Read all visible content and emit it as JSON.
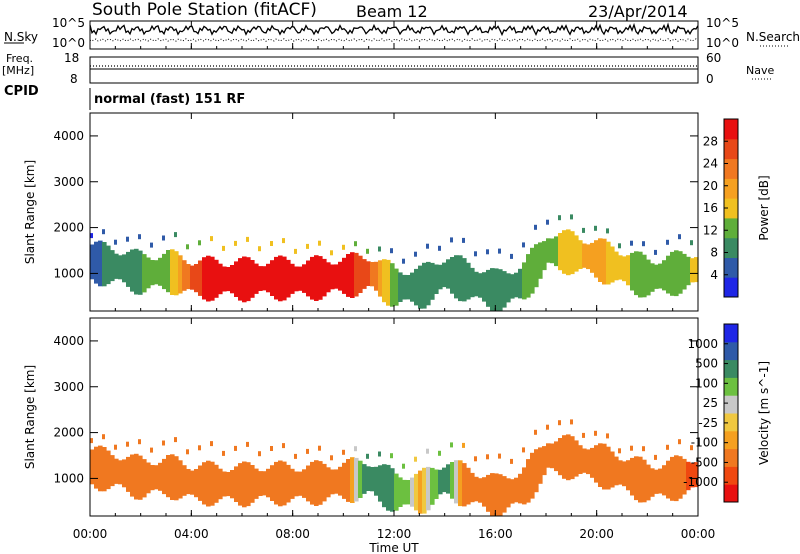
{
  "header": {
    "station": "South Pole Station (fitACF)",
    "beam": "Beam 12",
    "date": "23/Apr/2014"
  },
  "panel_labels": {
    "nsky": "N.Sky",
    "nsearch": "N.Search",
    "freq_line1": "Freq.",
    "freq_line2": "[MHz]",
    "nave": "Nave",
    "cpid": "CPID",
    "cpid_value": "normal (fast) 151 RF"
  },
  "noise_axis": {
    "left_ticks": [
      "10^5",
      "10^0"
    ],
    "right_ticks": [
      "10^5",
      "10^0"
    ]
  },
  "freq_axis": {
    "left_ticks": [
      "18",
      "8"
    ],
    "right_ticks": [
      "60",
      "0"
    ]
  },
  "colors": {
    "power_scale": [
      "#1f26e6",
      "#2f5aa8",
      "#3a8a62",
      "#5fae3a",
      "#f0c020",
      "#f5a020",
      "#f07820",
      "#e84818",
      "#e81010"
    ],
    "velocity_scale": [
      "#e81010",
      "#f04810",
      "#f07820",
      "#f5a020",
      "#f0c840",
      "#c8c8c8",
      "#6cc040",
      "#3a8a62",
      "#2f5aa8",
      "#1f26e6"
    ]
  },
  "chart_data": [
    {
      "type": "heatmap",
      "xlabel": "Time UT",
      "ylabel": "Slant Range [km]",
      "x_ticks": [
        "00:00",
        "04:00",
        "08:00",
        "12:00",
        "16:00",
        "20:00",
        "00:00"
      ],
      "y_ticks": [
        "1000",
        "2000",
        "3000",
        "4000"
      ],
      "ylim": [
        180,
        4500
      ],
      "colorbar_label": "Power [dB]",
      "colorbar_ticks": [
        "4",
        "8",
        "12",
        "16",
        "20",
        "24",
        "28"
      ],
      "colorbar_range": [
        0,
        30
      ],
      "series": [
        {
          "x": [
            0.0,
            1.0,
            2.0,
            3.0,
            4.0,
            5.0,
            6.0,
            7.0,
            8.0,
            9.0,
            10.0,
            11.0,
            12.0,
            13.0,
            14.0,
            15.0,
            16.0,
            17.0,
            18.0,
            19.0,
            20.0,
            21.0,
            22.0,
            23.0,
            24.0
          ],
          "y": [
            1250,
            1150,
            1000,
            1050,
            900,
            880,
            870,
            900,
            880,
            900,
            950,
            1000,
            700,
            700,
            1000,
            800,
            600,
            800,
            1500,
            1450,
            1300,
            1100,
            900,
            1000,
            1100
          ],
          "values": [
            6,
            8,
            10,
            12,
            26,
            28,
            28,
            28,
            28,
            28,
            28,
            24,
            10,
            8,
            10,
            8,
            8,
            10,
            12,
            16,
            18,
            14,
            10,
            12,
            14
          ]
        }
      ]
    },
    {
      "type": "heatmap",
      "xlabel": "Time UT",
      "ylabel": "Slant Range [km]",
      "x_ticks": [
        "00:00",
        "04:00",
        "08:00",
        "12:00",
        "16:00",
        "20:00",
        "00:00"
      ],
      "y_ticks": [
        "1000",
        "2000",
        "3000",
        "4000"
      ],
      "ylim": [
        180,
        4500
      ],
      "colorbar_label": "Velocity [m s^-1]",
      "colorbar_ticks": [
        "1000",
        "500",
        "100",
        "25",
        "-25",
        "-100",
        "-500",
        "-1000"
      ],
      "colorbar_range": [
        -1200,
        1200
      ],
      "series": [
        {
          "x": [
            0.0,
            1.0,
            2.0,
            3.0,
            4.0,
            5.0,
            6.0,
            7.0,
            8.0,
            9.0,
            10.0,
            11.0,
            12.0,
            13.0,
            14.0,
            15.0,
            16.0,
            17.0,
            18.0,
            19.0,
            20.0,
            21.0,
            22.0,
            23.0,
            24.0
          ],
          "y": [
            1250,
            1150,
            1000,
            1050,
            900,
            880,
            870,
            900,
            880,
            900,
            950,
            1000,
            700,
            700,
            1000,
            800,
            600,
            800,
            1500,
            1450,
            1300,
            1100,
            900,
            1000,
            1100
          ],
          "values": [
            -200,
            -300,
            -250,
            -300,
            -400,
            -350,
            -300,
            -350,
            -300,
            -250,
            -200,
            300,
            100,
            -50,
            200,
            -300,
            -400,
            -300,
            -350,
            -300,
            -400,
            -350,
            -300,
            -400,
            -600
          ]
        }
      ]
    }
  ]
}
